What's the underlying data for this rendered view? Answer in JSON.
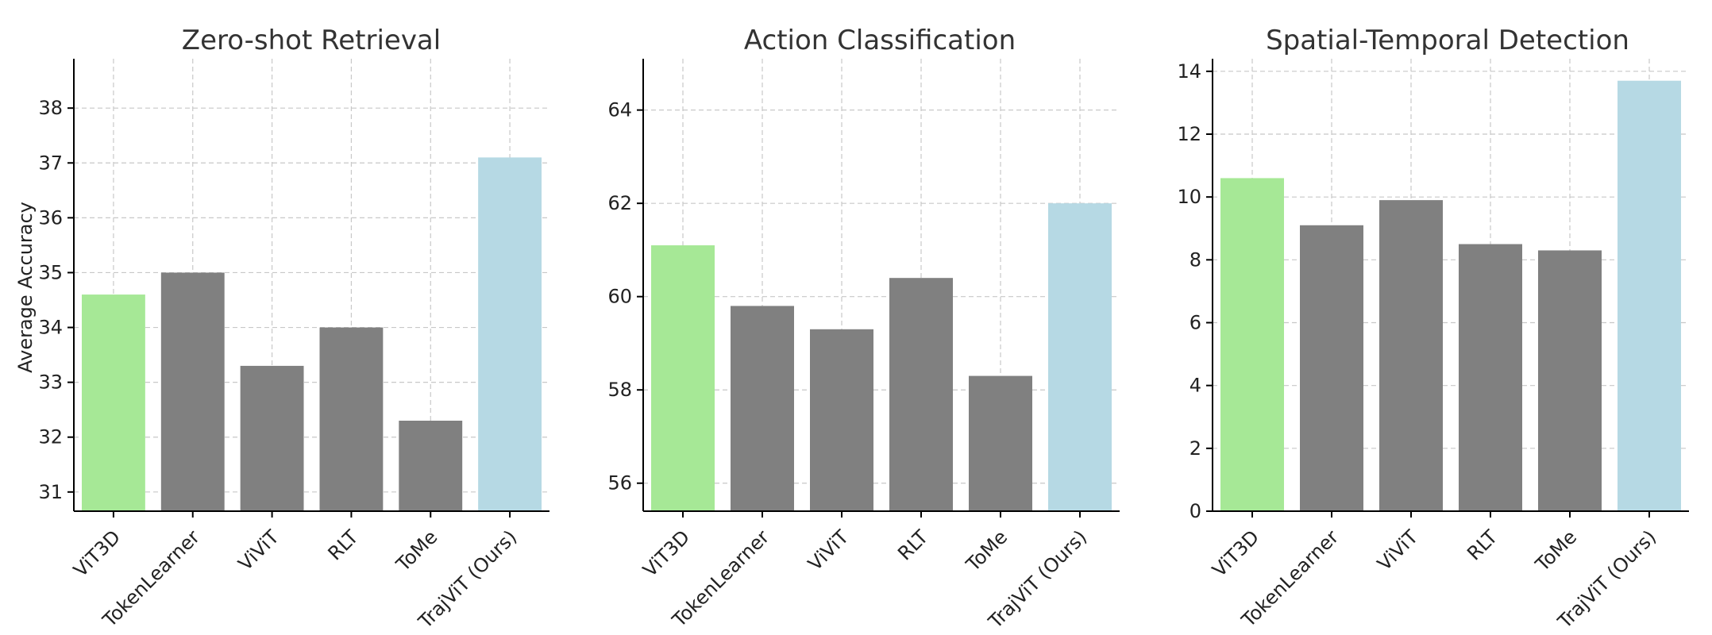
{
  "chart_data": [
    {
      "type": "bar",
      "title": "Zero-shot Retrieval",
      "ylabel": "Average Accuracy",
      "categories": [
        "ViT3D",
        "TokenLearner",
        "ViViT",
        "RLT",
        "ToMe",
        "TrajViT (Ours)"
      ],
      "values": [
        34.6,
        35.0,
        33.3,
        34.0,
        32.3,
        37.1
      ],
      "colors": [
        "#a6e896",
        "#808080",
        "#808080",
        "#808080",
        "#808080",
        "#b6d9e4"
      ],
      "ylim": [
        30.65,
        38.9
      ],
      "yticks": [
        31,
        32,
        33,
        34,
        35,
        36,
        37,
        38
      ],
      "grid": true
    },
    {
      "type": "bar",
      "title": "Action Classification",
      "ylabel": "",
      "categories": [
        "ViT3D",
        "TokenLearner",
        "ViViT",
        "RLT",
        "ToMe",
        "TrajViT (Ours)"
      ],
      "values": [
        61.1,
        59.8,
        59.3,
        60.4,
        58.3,
        62.0
      ],
      "colors": [
        "#a6e896",
        "#808080",
        "#808080",
        "#808080",
        "#808080",
        "#b6d9e4"
      ],
      "ylim": [
        55.4,
        65.1
      ],
      "yticks": [
        56,
        58,
        60,
        62,
        64
      ],
      "grid": true
    },
    {
      "type": "bar",
      "title": "Spatial-Temporal Detection",
      "ylabel": "",
      "categories": [
        "ViT3D",
        "TokenLearner",
        "ViViT",
        "RLT",
        "ToMe",
        "TrajViT (Ours)"
      ],
      "values": [
        10.6,
        9.1,
        9.9,
        8.5,
        8.3,
        13.7
      ],
      "colors": [
        "#a6e896",
        "#808080",
        "#808080",
        "#808080",
        "#808080",
        "#b6d9e4"
      ],
      "ylim": [
        0,
        14.4
      ],
      "yticks": [
        0,
        2,
        4,
        6,
        8,
        10,
        12,
        14
      ],
      "grid": true
    }
  ]
}
